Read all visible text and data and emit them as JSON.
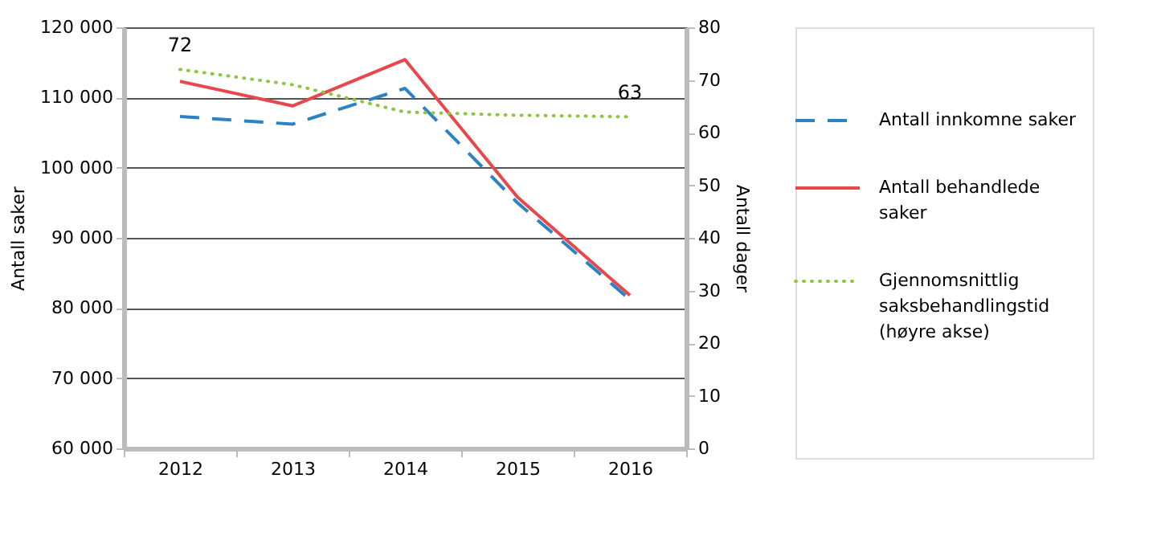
{
  "chart_data": {
    "type": "line",
    "ylabel": "Antall saker",
    "y2label": "Antall dager",
    "categories": [
      "2012",
      "2013",
      "2014",
      "2015",
      "2016"
    ],
    "series": [
      {
        "name": "Antall innkomne saker",
        "color": "#2b83c6",
        "line_style": "dashed",
        "values": [
          107300,
          106200,
          111300,
          95000,
          81200
        ]
      },
      {
        "name": "Antall behandlede saker",
        "color": "#e8474b",
        "line_style": "solid",
        "values": [
          112300,
          108800,
          115400,
          95800,
          81800
        ]
      },
      {
        "name": "Gjennomsnittlig saksbehandlingstid (høyre akse)",
        "color": "#8dc63f",
        "line_style": "dotted",
        "axis": "y2",
        "values": [
          72,
          69.1,
          63.9,
          63.3,
          63
        ],
        "value_labels": [
          "72",
          null,
          null,
          null,
          "63"
        ]
      }
    ],
    "ylim": [
      60000,
      120000
    ],
    "yticks": [
      {
        "value": 60000,
        "label": "60 000"
      },
      {
        "value": 70000,
        "label": "70 000"
      },
      {
        "value": 80000,
        "label": "80 000"
      },
      {
        "value": 90000,
        "label": "90 000"
      },
      {
        "value": 100000,
        "label": "100 000"
      },
      {
        "value": 110000,
        "label": "110 000"
      },
      {
        "value": 120000,
        "label": "120 000"
      }
    ],
    "y2lim": [
      0,
      80
    ],
    "y2ticks": [
      0,
      10,
      20,
      30,
      40,
      50,
      60,
      70,
      80
    ],
    "grid": "y",
    "legend": "right",
    "marker": "none"
  }
}
